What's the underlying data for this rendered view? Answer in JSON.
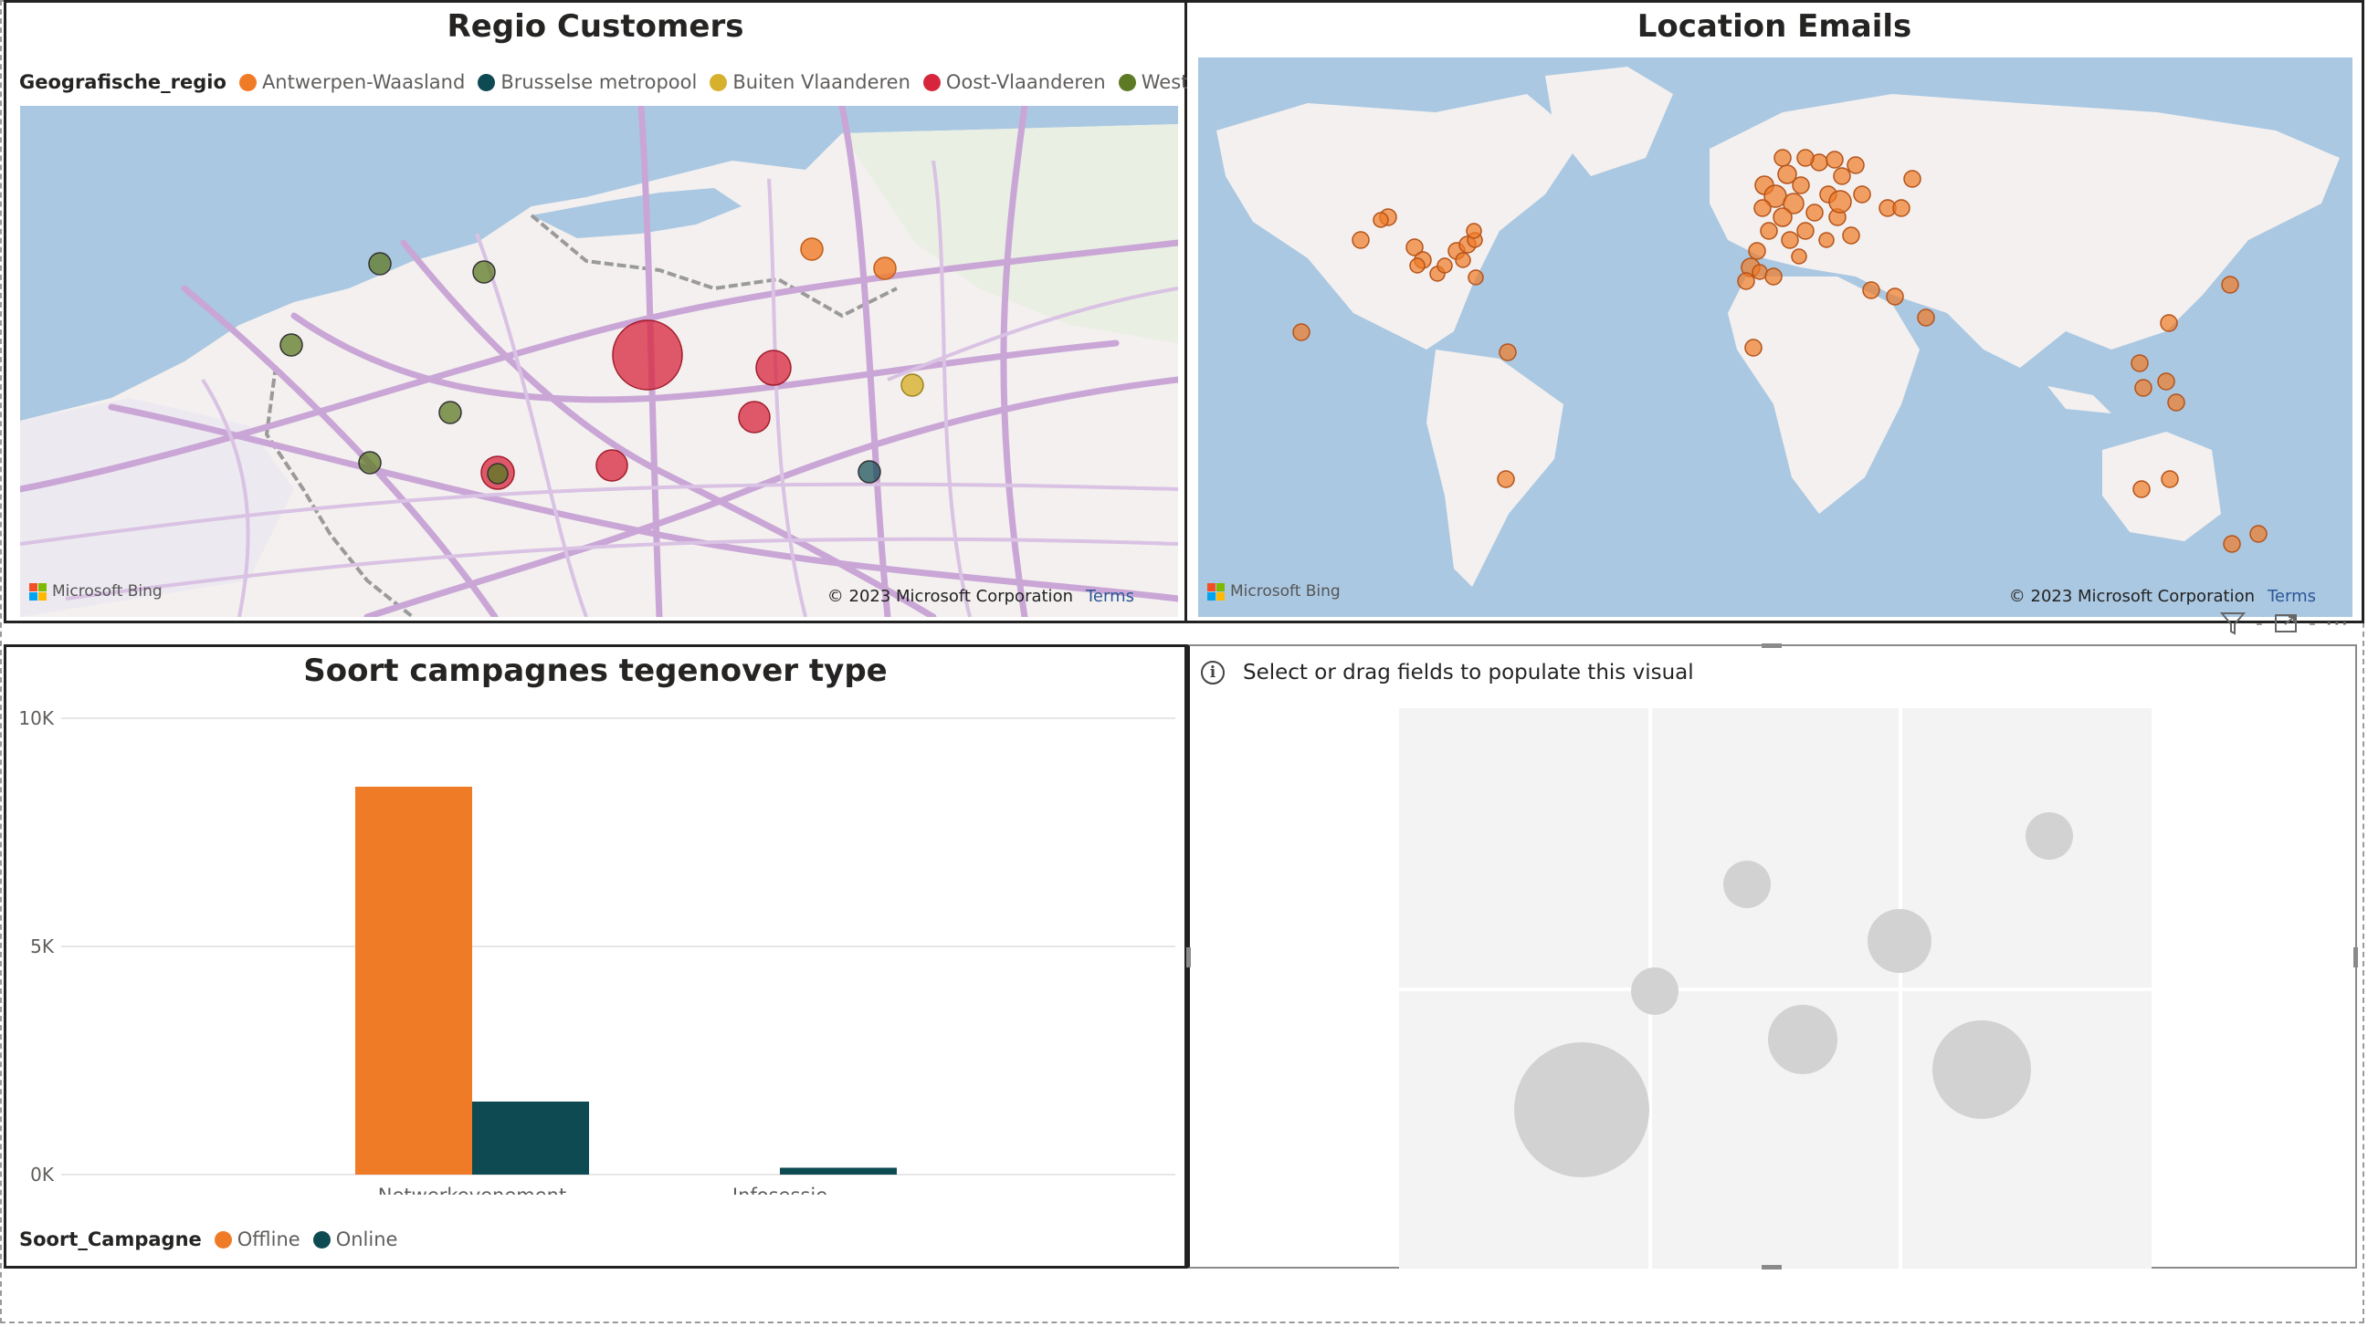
{
  "regio_visual": {
    "title": "Regio Customers",
    "legend_title": "Geografische_regio",
    "legend": [
      {
        "label": "Antwerpen-Waasland",
        "color": "#F07B27"
      },
      {
        "label": "Brusselse metropool",
        "color": "#0E4A52"
      },
      {
        "label": "Buiten Vlaanderen",
        "color": "#D7B12E"
      },
      {
        "label": "Oost-Vlaanderen",
        "color": "#D7263C"
      },
      {
        "label": "West-Vlaanderen",
        "color": "#5E7A24"
      }
    ],
    "bing_label": "Microsoft Bing",
    "copyright": "© 2023 Microsoft Corporation",
    "terms": "Terms"
  },
  "location_visual": {
    "title": "Location Emails",
    "bing_label": "Microsoft Bing",
    "copyright": "© 2023 Microsoft Corporation",
    "terms": "Terms"
  },
  "campaign_visual": {
    "title": "Soort campagnes tegenover type",
    "legend_title": "Soort_Campagne",
    "legend": [
      {
        "label": "Offline",
        "color": "#F07B27"
      },
      {
        "label": "Online",
        "color": "#0E4A52"
      }
    ],
    "y_ticks": [
      "10K",
      "5K",
      "0K"
    ]
  },
  "chart_data": {
    "type": "bar",
    "title": "Soort campagnes tegenover type",
    "categories": [
      "Netwerkevenement",
      "Infosessie"
    ],
    "series": [
      {
        "name": "Offline",
        "values": [
          8500,
          0
        ],
        "color": "#F07B27"
      },
      {
        "name": "Online",
        "values": [
          1600,
          150
        ],
        "color": "#0E4A52"
      }
    ],
    "ylim": [
      0,
      10000
    ],
    "grid": true,
    "legend_position": "bottom-left"
  },
  "empty_visual": {
    "message": "Select or drag fields to populate this visual"
  },
  "header_icons": [
    "filter-icon",
    "focus-mode-icon",
    "more-options-icon"
  ]
}
